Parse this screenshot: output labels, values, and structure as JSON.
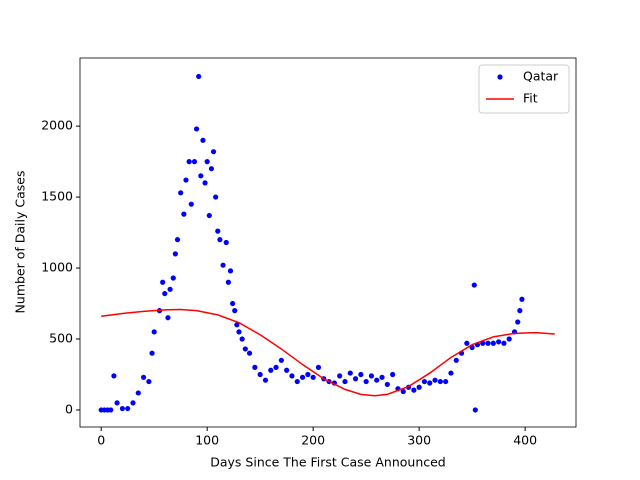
{
  "chart_data": {
    "type": "scatter",
    "xlabel": "Days Since The First Case Announced",
    "ylabel": "Number of Daily Cases",
    "xlim": [
      -20,
      448
    ],
    "ylim": [
      -120,
      2480
    ],
    "xticks": [
      0,
      100,
      200,
      300,
      400
    ],
    "yticks": [
      0,
      500,
      1000,
      1500,
      2000
    ],
    "legend": "upper right",
    "series": [
      {
        "name": "Qatar",
        "color": "#0000ff",
        "style": "dot",
        "x": [
          0,
          3,
          6,
          9,
          12,
          15,
          20,
          25,
          30,
          35,
          40,
          45,
          48,
          50,
          55,
          58,
          60,
          63,
          65,
          68,
          70,
          72,
          75,
          78,
          80,
          83,
          85,
          88,
          90,
          92,
          94,
          96,
          98,
          100,
          102,
          104,
          106,
          108,
          110,
          112,
          115,
          118,
          120,
          122,
          124,
          126,
          128,
          130,
          133,
          136,
          140,
          145,
          150,
          155,
          160,
          165,
          170,
          175,
          180,
          185,
          190,
          195,
          200,
          205,
          210,
          215,
          220,
          225,
          230,
          235,
          240,
          245,
          250,
          255,
          260,
          265,
          270,
          275,
          280,
          285,
          290,
          295,
          300,
          305,
          310,
          315,
          320,
          325,
          330,
          335,
          340,
          345,
          350,
          352,
          353,
          355,
          360,
          365,
          370,
          375,
          380,
          385,
          390,
          393,
          395,
          397
        ],
        "values": [
          0,
          0,
          0,
          0,
          240,
          50,
          10,
          10,
          50,
          120,
          230,
          200,
          400,
          550,
          700,
          900,
          820,
          650,
          850,
          930,
          1100,
          1200,
          1530,
          1380,
          1620,
          1750,
          1450,
          1750,
          1980,
          2350,
          1650,
          1900,
          1600,
          1750,
          1370,
          1700,
          1820,
          1500,
          1260,
          1200,
          1020,
          1180,
          900,
          980,
          750,
          700,
          600,
          550,
          500,
          430,
          400,
          300,
          250,
          210,
          280,
          300,
          350,
          280,
          240,
          200,
          230,
          250,
          230,
          300,
          220,
          200,
          190,
          240,
          200,
          260,
          220,
          250,
          200,
          240,
          210,
          230,
          180,
          250,
          150,
          130,
          160,
          140,
          160,
          200,
          190,
          210,
          200,
          200,
          260,
          350,
          400,
          470,
          440,
          880,
          0,
          460,
          470,
          470,
          470,
          480,
          470,
          500,
          550,
          620,
          700,
          780
        ]
      },
      {
        "name": "Fit",
        "color": "#ff0000",
        "style": "line",
        "x": [
          0,
          20,
          40,
          60,
          75,
          90,
          110,
          130,
          150,
          170,
          190,
          210,
          230,
          245,
          258,
          270,
          290,
          310,
          330,
          350,
          370,
          390,
          410,
          428
        ],
        "values": [
          660,
          680,
          695,
          705,
          708,
          700,
          670,
          615,
          530,
          430,
          320,
          220,
          145,
          110,
          100,
          110,
          165,
          260,
          370,
          460,
          515,
          540,
          545,
          535
        ]
      }
    ]
  }
}
